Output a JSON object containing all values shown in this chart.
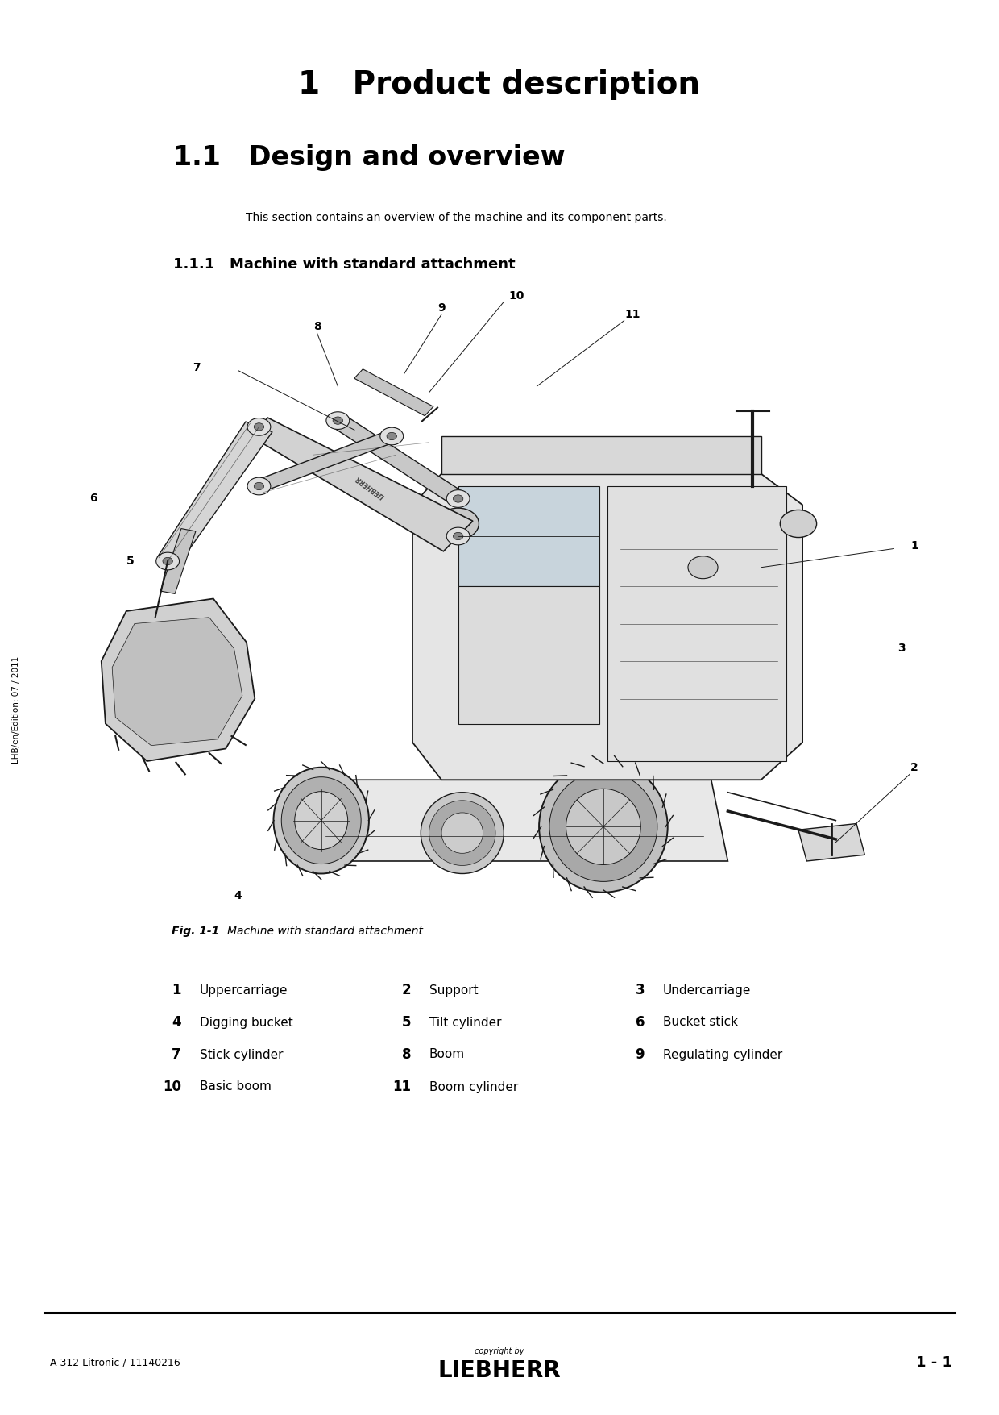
{
  "bg_color": "#ffffff",
  "page_title": "1   Product description",
  "section_title": "1.1   Design and overview",
  "section_desc": "This section contains an overview of the machine and its component parts.",
  "subsection_title": "1.1.1   Machine with standard attachment",
  "fig_caption_bold": "Fig. 1-1",
  "fig_caption_italic": "Machine with standard attachment",
  "parts_rows": [
    [
      [
        "1",
        "Uppercarriage"
      ],
      [
        "2",
        "Support"
      ],
      [
        "3",
        "Undercarriage"
      ]
    ],
    [
      [
        "4",
        "Digging bucket"
      ],
      [
        "5",
        "Tilt cylinder"
      ],
      [
        "6",
        "Bucket stick"
      ]
    ],
    [
      [
        "7",
        "Stick cylinder"
      ],
      [
        "8",
        "Boom"
      ],
      [
        "9",
        "Regulating cylinder"
      ]
    ],
    [
      [
        "10",
        "Basic boom"
      ],
      [
        "11",
        "Boom cylinder"
      ],
      null
    ]
  ],
  "sidebar_text": "LHB/en/Edition: 07 / 2011",
  "footer_left": "A 312 Litronic / 11140216",
  "footer_center_small": "copyright by",
  "footer_center_large": "LIEBHERR",
  "footer_right": "1 - 1",
  "title_fontsize": 28,
  "section_fontsize": 24,
  "subsection_fontsize": 13,
  "body_fontsize": 10,
  "caption_fontsize": 10,
  "parts_num_fontsize": 12,
  "parts_name_fontsize": 11,
  "footer_fontsize": 9,
  "sidebar_fontsize": 7.5,
  "liebherr_fontsize": 20,
  "page_number_fontsize": 13
}
